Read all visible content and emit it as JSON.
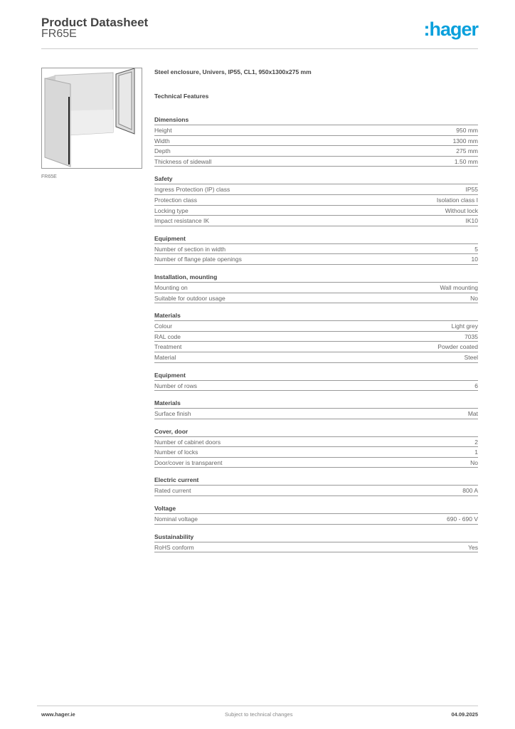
{
  "header": {
    "title": "Product Datasheet",
    "code": "FR65E",
    "logo": ":hager",
    "logo_color": "#0aa0dc"
  },
  "image": {
    "caption": "FR65E",
    "icon": "enclosure-product-photo"
  },
  "main": {
    "description": "Steel enclosure, Univers, IP55, CL1, 950x1300x275 mm",
    "features_title": "Technical Features",
    "sections": [
      {
        "title": "Dimensions",
        "rows": [
          [
            "Height",
            "950 mm"
          ],
          [
            "Width",
            "1300 mm"
          ],
          [
            "Depth",
            "275 mm"
          ],
          [
            "Thickness of sidewall",
            "1.50 mm"
          ]
        ]
      },
      {
        "title": "Safety",
        "rows": [
          [
            "Ingress Protection (IP) class",
            "IP55"
          ],
          [
            "Protection class",
            "Isolation class I"
          ],
          [
            "Locking type",
            "Without lock"
          ],
          [
            "Impact resistance IK",
            "IK10"
          ]
        ]
      },
      {
        "title": "Equipment",
        "rows": [
          [
            "Number of section in width",
            "5"
          ],
          [
            "Number of flange plate openings",
            "10"
          ]
        ]
      },
      {
        "title": "Installation, mounting",
        "rows": [
          [
            "Mounting on",
            "Wall mounting"
          ],
          [
            "Suitable for outdoor usage",
            "No"
          ]
        ]
      },
      {
        "title": "Materials",
        "rows": [
          [
            "Colour",
            "Light grey"
          ],
          [
            "RAL code",
            "7035"
          ],
          [
            "Treatment",
            "Powder coated"
          ],
          [
            "Material",
            "Steel"
          ]
        ]
      },
      {
        "title": "Equipment",
        "rows": [
          [
            "Number of rows",
            "6"
          ]
        ]
      },
      {
        "title": "Materials",
        "rows": [
          [
            "Surface finish",
            "Mat"
          ]
        ]
      },
      {
        "title": "Cover, door",
        "rows": [
          [
            "Number of cabinet doors",
            "2"
          ],
          [
            "Number of locks",
            "1"
          ],
          [
            "Door/cover is transparent",
            "No"
          ]
        ]
      },
      {
        "title": "Electric current",
        "rows": [
          [
            "Rated current",
            "800 A"
          ]
        ]
      },
      {
        "title": "Voltage",
        "rows": [
          [
            "Nominal voltage",
            "690 - 690 V"
          ]
        ]
      },
      {
        "title": "Sustainability",
        "rows": [
          [
            "RoHS conform",
            "Yes"
          ]
        ]
      }
    ]
  },
  "footer": {
    "website": "www.hager.ie",
    "note": "Subject to technical changes",
    "date": "04.09.2025"
  }
}
